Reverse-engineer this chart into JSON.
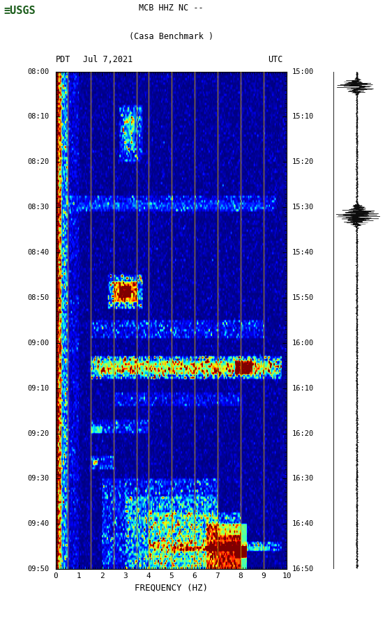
{
  "title_line1": "MCB HHZ NC --",
  "title_line2": "(Casa Benchmark )",
  "left_label": "PDT",
  "date_label": "Jul 7,2021",
  "right_label": "UTC",
  "xlabel": "FREQUENCY (HZ)",
  "freq_min": 0,
  "freq_max": 10,
  "freq_ticks": [
    0,
    1,
    2,
    3,
    4,
    5,
    6,
    7,
    8,
    9,
    10
  ],
  "pdt_ticks": [
    "08:00",
    "08:10",
    "08:20",
    "08:30",
    "08:40",
    "08:50",
    "09:00",
    "09:10",
    "09:20",
    "09:30",
    "09:40",
    "09:50"
  ],
  "utc_ticks": [
    "15:00",
    "15:10",
    "15:20",
    "15:30",
    "15:40",
    "15:50",
    "16:00",
    "16:10",
    "16:20",
    "16:30",
    "16:40",
    "16:50"
  ],
  "vertical_lines_freq": [
    0.5,
    1.5,
    2.5,
    3.5,
    4.0,
    5.0,
    6.0,
    7.0,
    8.0,
    9.0
  ],
  "vline_color": "#c8a000",
  "background_color": "#ffffff",
  "usgs_color": "#1a5c1a",
  "font_family": "monospace",
  "spectrogram_rows": 220,
  "spectrogram_cols": 200
}
